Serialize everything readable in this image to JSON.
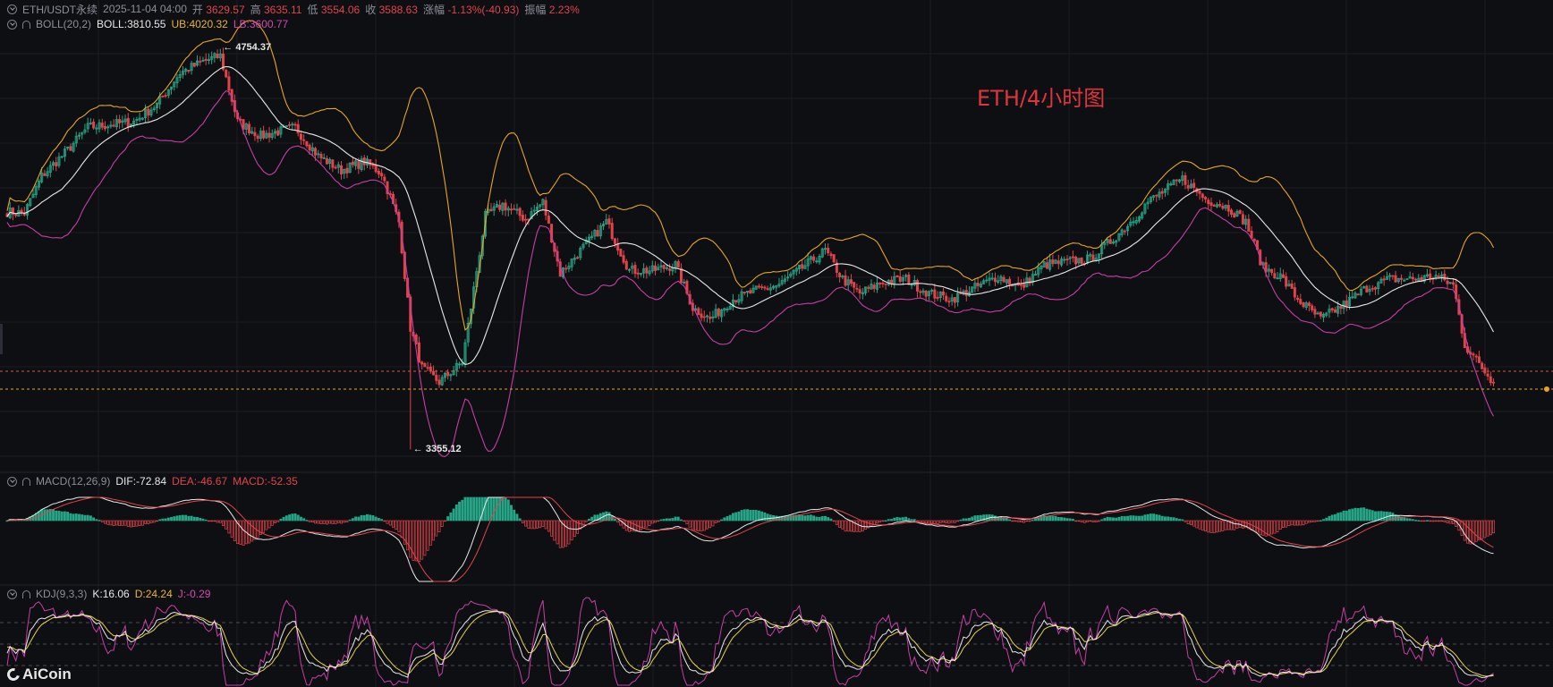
{
  "header": {
    "symbol": "ETH/USDT永续",
    "datetime": "2025-11-04 04:00",
    "open_label": "开",
    "open": "3629.57",
    "high_label": "高",
    "high": "3635.11",
    "low_label": "低",
    "low": "3554.06",
    "close_label": "收",
    "close": "3588.63",
    "change_label": "涨幅",
    "change": "-1.13%(-40.93)",
    "amplitude_label": "振幅",
    "amplitude": "2.23%"
  },
  "boll": {
    "name": "BOLL(20,2)",
    "mid": "BOLL:3810.55",
    "ub": "UB:4020.32",
    "lb": "LB:3600.77"
  },
  "macd": {
    "name": "MACD(12,26,9)",
    "dif": "DIF:-72.84",
    "dea": "DEA:-46.67",
    "macd": "MACD:-52.35"
  },
  "kdj": {
    "name": "KDJ(9,3,3)",
    "k": "K:16.06",
    "d": "D:24.24",
    "j": "J:-0.29"
  },
  "annotations": {
    "high_marker": "← 4754.37",
    "low_marker": "← 3355.12"
  },
  "watermark": "ETH/4小时图",
  "logo": "AiCoin",
  "colors": {
    "up": "#26a586",
    "down": "#e2434b",
    "mid": "#e8e8e8",
    "ub": "#e9a520",
    "lb": "#c73ea7",
    "dif": "#e8e8e8",
    "dea": "#e2434b",
    "k": "#e8e8e8",
    "d": "#e9d34a",
    "j": "#c73ea7",
    "background": "#0e0f12"
  },
  "chart_data": {
    "type": "candlestick",
    "interval": "4h",
    "ylim": [
      3300,
      4800
    ],
    "high_price": 4754.37,
    "low_price": 3355.12,
    "last_price": 3588.63,
    "close_anchors": [
      [
        0,
        4185
      ],
      [
        6,
        4180
      ],
      [
        12,
        4310
      ],
      [
        20,
        4390
      ],
      [
        28,
        4480
      ],
      [
        36,
        4490
      ],
      [
        44,
        4500
      ],
      [
        52,
        4560
      ],
      [
        60,
        4670
      ],
      [
        64,
        4690
      ],
      [
        68,
        4710
      ],
      [
        74,
        4730
      ],
      [
        80,
        4500
      ],
      [
        88,
        4450
      ],
      [
        100,
        4480
      ],
      [
        108,
        4380
      ],
      [
        116,
        4330
      ],
      [
        124,
        4360
      ],
      [
        130,
        4320
      ],
      [
        136,
        4150
      ],
      [
        140,
        3780
      ],
      [
        144,
        3640
      ],
      [
        150,
        3590
      ],
      [
        158,
        3660
      ],
      [
        166,
        4170
      ],
      [
        172,
        4210
      ],
      [
        180,
        4160
      ],
      [
        186,
        4220
      ],
      [
        192,
        3970
      ],
      [
        200,
        4060
      ],
      [
        208,
        4150
      ],
      [
        216,
        3980
      ],
      [
        224,
        3980
      ],
      [
        232,
        4000
      ],
      [
        238,
        3850
      ],
      [
        244,
        3810
      ],
      [
        252,
        3880
      ],
      [
        260,
        3910
      ],
      [
        268,
        3930
      ],
      [
        276,
        3990
      ],
      [
        284,
        4050
      ],
      [
        290,
        3950
      ],
      [
        296,
        3900
      ],
      [
        304,
        3940
      ],
      [
        312,
        3950
      ],
      [
        320,
        3900
      ],
      [
        328,
        3880
      ],
      [
        336,
        3920
      ],
      [
        344,
        3960
      ],
      [
        352,
        3920
      ],
      [
        360,
        4000
      ],
      [
        368,
        4010
      ],
      [
        376,
        4020
      ],
      [
        384,
        4090
      ],
      [
        392,
        4170
      ],
      [
        396,
        4220
      ],
      [
        402,
        4260
      ],
      [
        408,
        4300
      ],
      [
        416,
        4230
      ],
      [
        424,
        4200
      ],
      [
        430,
        4150
      ],
      [
        436,
        3990
      ],
      [
        442,
        3960
      ],
      [
        448,
        3880
      ],
      [
        456,
        3810
      ],
      [
        464,
        3860
      ],
      [
        472,
        3920
      ],
      [
        480,
        3950
      ],
      [
        488,
        3950
      ],
      [
        496,
        3960
      ],
      [
        502,
        3930
      ],
      [
        506,
        3720
      ],
      [
        512,
        3640
      ],
      [
        516,
        3588.63
      ]
    ],
    "candle_count": 517,
    "series": [
      {
        "name": "BOLL"
      },
      {
        "name": "UB"
      },
      {
        "name": "LB"
      }
    ],
    "indicators": [
      "MACD(12,26,9)",
      "KDJ(9,3,3)"
    ],
    "kdj_levels": [
      20,
      50,
      80
    ],
    "grid": true
  }
}
